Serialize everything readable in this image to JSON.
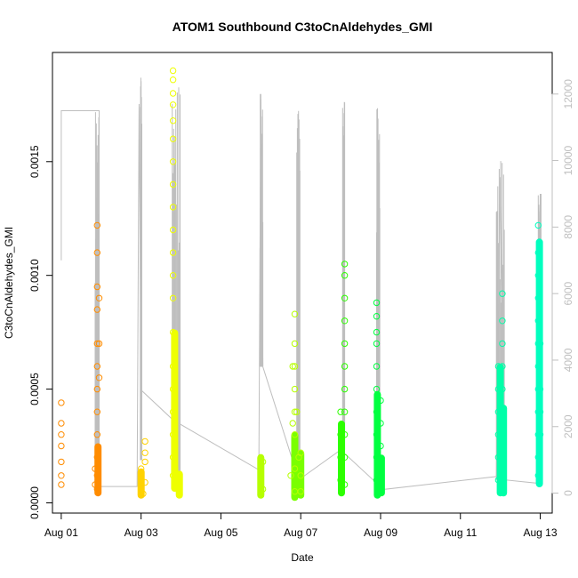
{
  "chart_data": {
    "type": "scatter",
    "title": "ATOM1 Southbound C3toCnAldehydes_GMI",
    "xlabel": "Date",
    "ylabel": "C3toCnAldehydes_GMI",
    "x_ticks": [
      "Aug 01",
      "Aug 03",
      "Aug 05",
      "Aug 07",
      "Aug 09",
      "Aug 11",
      "Aug 13"
    ],
    "y_ticks": [
      "0.0000",
      "0.0005",
      "0.0010",
      "0.0015"
    ],
    "y_tick_values": [
      0,
      0.0005,
      0.001,
      0.0015
    ],
    "y2_ticks": [
      "0",
      "2000",
      "4000",
      "6000",
      "8000",
      "10000",
      "12000"
    ],
    "y2_tick_values": [
      0,
      2000,
      4000,
      6000,
      8000,
      10000,
      12000
    ],
    "xlim": [
      0.78,
      13.3
    ],
    "ylim": [
      -4.5e-05,
      0.00198
    ],
    "y2lim": [
      -600,
      13250
    ],
    "grid": false,
    "line_color": "#bebebe",
    "series": [
      {
        "color": "#ff8c00",
        "points": [
          [
            1.0,
            0.00044
          ],
          [
            1.0,
            0.0003
          ],
          [
            1.0,
            0.00018
          ],
          [
            1.0,
            8e-05
          ],
          [
            1.0,
            0.00025
          ],
          [
            1.0,
            0.00035
          ],
          [
            1.0,
            0.00012
          ],
          [
            1.9,
            0.00122
          ],
          [
            1.9,
            0.0011
          ],
          [
            1.9,
            0.00095
          ],
          [
            1.9,
            0.00085
          ],
          [
            1.9,
            0.0007
          ],
          [
            1.9,
            0.0006
          ],
          [
            1.9,
            0.0005
          ],
          [
            1.9,
            0.0004
          ],
          [
            1.9,
            0.0003
          ],
          [
            1.9,
            0.0002
          ],
          [
            1.9,
            0.00012
          ],
          [
            1.9,
            6e-05
          ],
          [
            1.85,
            0.00015
          ],
          [
            1.85,
            8e-05
          ],
          [
            1.95,
            0.0009
          ],
          [
            1.95,
            0.0007
          ],
          [
            1.95,
            0.00055
          ]
        ]
      },
      {
        "color": "#ffd200",
        "points": [
          [
            3.0,
            0.00015
          ],
          [
            3.0,
            0.00012
          ],
          [
            3.0,
            8e-05
          ],
          [
            3.05,
            4e-05
          ],
          [
            3.1,
            0.00022
          ],
          [
            3.1,
            0.00027
          ],
          [
            3.1,
            0.00018
          ],
          [
            3.1,
            9e-05
          ]
        ]
      },
      {
        "color": "#eeff00",
        "points": [
          [
            3.8,
            0.0019
          ],
          [
            3.8,
            0.00186
          ],
          [
            3.8,
            0.0018
          ],
          [
            3.8,
            0.00175
          ],
          [
            3.8,
            0.00168
          ],
          [
            3.8,
            0.0016
          ],
          [
            3.8,
            0.0015
          ],
          [
            3.8,
            0.0014
          ],
          [
            3.8,
            0.0013
          ],
          [
            3.8,
            0.0012
          ],
          [
            3.8,
            0.0011
          ],
          [
            3.8,
            0.001
          ],
          [
            3.8,
            0.0009
          ],
          [
            3.8,
            0.00075
          ],
          [
            3.8,
            0.0006
          ],
          [
            3.8,
            0.0005
          ],
          [
            3.8,
            0.0004
          ],
          [
            3.8,
            0.0003
          ],
          [
            3.8,
            0.0002
          ],
          [
            3.8,
            0.00012
          ],
          [
            3.85,
            0.00025
          ],
          [
            3.85,
            0.00015
          ],
          [
            3.9,
            0.00012
          ],
          [
            3.9,
            8e-05
          ],
          [
            3.95,
            5e-05
          ]
        ]
      },
      {
        "color": "#b6ff00",
        "points": [
          [
            6.0,
            0.0002
          ],
          [
            6.0,
            0.00016
          ],
          [
            6.0,
            0.00012
          ],
          [
            6.0,
            8e-05
          ],
          [
            6.0,
            4e-05
          ],
          [
            6.05,
            0.00018
          ],
          [
            6.05,
            6e-05
          ],
          [
            6.85,
            0.00083
          ],
          [
            6.85,
            0.0007
          ],
          [
            6.85,
            0.0006
          ],
          [
            6.85,
            0.0005
          ],
          [
            6.85,
            0.0004
          ],
          [
            6.85,
            0.0003
          ],
          [
            6.85,
            0.00015
          ],
          [
            6.85,
            5e-05
          ],
          [
            6.8,
            0.0006
          ],
          [
            6.8,
            0.00035
          ],
          [
            6.75,
            0.00012
          ],
          [
            6.9,
            0.0004
          ],
          [
            6.95,
            0.0002
          ],
          [
            7.0,
            0.00022
          ],
          [
            7.0,
            0.00012
          ],
          [
            7.0,
            5e-05
          ]
        ]
      },
      {
        "color": "#2dff00",
        "points": [
          [
            8.0,
            0.0004
          ],
          [
            8.0,
            0.0003
          ],
          [
            8.0,
            0.0002
          ],
          [
            8.0,
            0.0001
          ],
          [
            8.1,
            0.00105
          ],
          [
            8.1,
            0.001
          ],
          [
            8.1,
            0.0009
          ],
          [
            8.1,
            0.0008
          ],
          [
            8.1,
            0.0007
          ],
          [
            8.1,
            0.0006
          ],
          [
            8.1,
            0.0005
          ],
          [
            8.1,
            0.0004
          ],
          [
            8.1,
            0.0003
          ],
          [
            8.1,
            0.0002
          ],
          [
            8.1,
            8e-05
          ]
        ]
      },
      {
        "color": "#00ff40",
        "points": [
          [
            8.9,
            0.00088
          ],
          [
            8.9,
            0.00082
          ],
          [
            8.9,
            0.00075
          ],
          [
            8.9,
            0.0007
          ],
          [
            8.9,
            0.0006
          ],
          [
            8.9,
            0.0005
          ],
          [
            8.9,
            0.0004
          ],
          [
            8.9,
            0.0003
          ],
          [
            8.9,
            0.0002
          ],
          [
            8.9,
            0.0001
          ],
          [
            9.0,
            0.00045
          ],
          [
            9.0,
            0.00035
          ],
          [
            9.0,
            0.00025
          ],
          [
            9.0,
            0.00015
          ],
          [
            9.0,
            6e-05
          ]
        ]
      },
      {
        "color": "#00ffa8",
        "points": [
          [
            11.95,
            0.0006
          ],
          [
            11.95,
            0.0005
          ],
          [
            11.95,
            0.0004
          ],
          [
            11.95,
            0.0003
          ],
          [
            11.95,
            0.0002
          ],
          [
            11.95,
            0.0001
          ],
          [
            12.05,
            0.00092
          ],
          [
            12.05,
            0.0008
          ],
          [
            12.05,
            0.0007
          ],
          [
            12.05,
            0.0006
          ],
          [
            12.05,
            0.0005
          ],
          [
            12.05,
            0.0004
          ],
          [
            12.05,
            0.0003
          ],
          [
            12.05,
            0.0002
          ],
          [
            12.05,
            0.0001
          ],
          [
            12.0,
            0.0003
          ],
          [
            12.0,
            0.00012
          ]
        ]
      },
      {
        "color": "#00ffbf",
        "points": [
          [
            12.95,
            0.00122
          ],
          [
            12.95,
            0.0011
          ],
          [
            12.95,
            0.001
          ],
          [
            12.95,
            0.0009
          ],
          [
            12.95,
            0.0008
          ],
          [
            12.95,
            0.0007
          ],
          [
            12.95,
            0.0006
          ],
          [
            12.95,
            0.0005
          ],
          [
            12.95,
            0.0004
          ],
          [
            12.95,
            0.0003
          ],
          [
            12.95,
            0.0002
          ],
          [
            12.95,
            0.00012
          ],
          [
            13.0,
            0.0007
          ],
          [
            13.0,
            0.0005
          ],
          [
            13.0,
            0.0004
          ],
          [
            13.0,
            0.0003
          ]
        ]
      }
    ],
    "bands": [
      {
        "color": "#ff8c00",
        "x": 1.92,
        "y_min": 4e-05,
        "y_max": 0.00025
      },
      {
        "color": "#ffd200",
        "x": 3.0,
        "y_min": 3e-05,
        "y_max": 0.00014
      },
      {
        "color": "#eeff00",
        "x": 3.84,
        "y_min": 6e-05,
        "y_max": 0.00075
      },
      {
        "color": "#eeff00",
        "x": 3.96,
        "y_min": 3e-05,
        "y_max": 0.00013
      },
      {
        "color": "#b6ff00",
        "x": 6.0,
        "y_min": 3e-05,
        "y_max": 0.0002
      },
      {
        "color": "#7aff00",
        "x": 6.85,
        "y_min": 2e-05,
        "y_max": 0.0003
      },
      {
        "color": "#7aff00",
        "x": 7.0,
        "y_min": 3e-05,
        "y_max": 0.00022
      },
      {
        "color": "#2dff00",
        "x": 8.02,
        "y_min": 4e-05,
        "y_max": 0.00035
      },
      {
        "color": "#00ff40",
        "x": 8.92,
        "y_min": 3e-05,
        "y_max": 0.00048
      },
      {
        "color": "#00ff40",
        "x": 9.02,
        "y_min": 4e-05,
        "y_max": 0.0002
      },
      {
        "color": "#00ffa8",
        "x": 12.0,
        "y_min": 4e-05,
        "y_max": 0.0006
      },
      {
        "color": "#00ffa8",
        "x": 12.08,
        "y_min": 4e-05,
        "y_max": 0.00042
      },
      {
        "color": "#00ffbf",
        "x": 12.98,
        "y_min": 8e-05,
        "y_max": 0.00115
      }
    ],
    "y2_line": [
      [
        1.0,
        7000
      ],
      [
        1.0,
        11500
      ],
      [
        1.95,
        11500
      ],
      [
        1.95,
        200
      ],
      [
        2.9,
        200
      ],
      [
        2.95,
        11700
      ],
      [
        3.0,
        3100
      ],
      [
        3.8,
        2200
      ],
      [
        5.95,
        700
      ],
      [
        6.0,
        12000
      ],
      [
        6.05,
        3800
      ],
      [
        6.95,
        400
      ],
      [
        8.0,
        1300
      ],
      [
        8.9,
        300
      ],
      [
        9.0,
        100
      ],
      [
        11.9,
        500
      ],
      [
        12.0,
        9500
      ],
      [
        12.1,
        400
      ],
      [
        12.9,
        300
      ],
      [
        13.0,
        9000
      ],
      [
        13.0,
        300
      ]
    ],
    "y2_spikes": [
      {
        "x_start": 1.85,
        "x_end": 1.95,
        "y_max": 11500,
        "y_min": 500
      },
      {
        "x_start": 2.98,
        "x_end": 3.02,
        "y_max": 12500,
        "y_min": 1000
      },
      {
        "x_start": 3.78,
        "x_end": 3.98,
        "y_max": 12200,
        "y_min": 500
      },
      {
        "x_start": 5.98,
        "x_end": 6.05,
        "y_max": 12000,
        "y_min": 3800
      },
      {
        "x_start": 6.9,
        "x_end": 6.98,
        "y_max": 11500,
        "y_min": 500
      },
      {
        "x_start": 8.05,
        "x_end": 8.1,
        "y_max": 11800,
        "y_min": 1300
      },
      {
        "x_start": 8.9,
        "x_end": 8.98,
        "y_max": 11600,
        "y_min": 300
      },
      {
        "x_start": 11.9,
        "x_end": 12.1,
        "y_max": 10000,
        "y_min": 400
      },
      {
        "x_start": 12.95,
        "x_end": 13.02,
        "y_max": 9000,
        "y_min": 300
      }
    ]
  }
}
